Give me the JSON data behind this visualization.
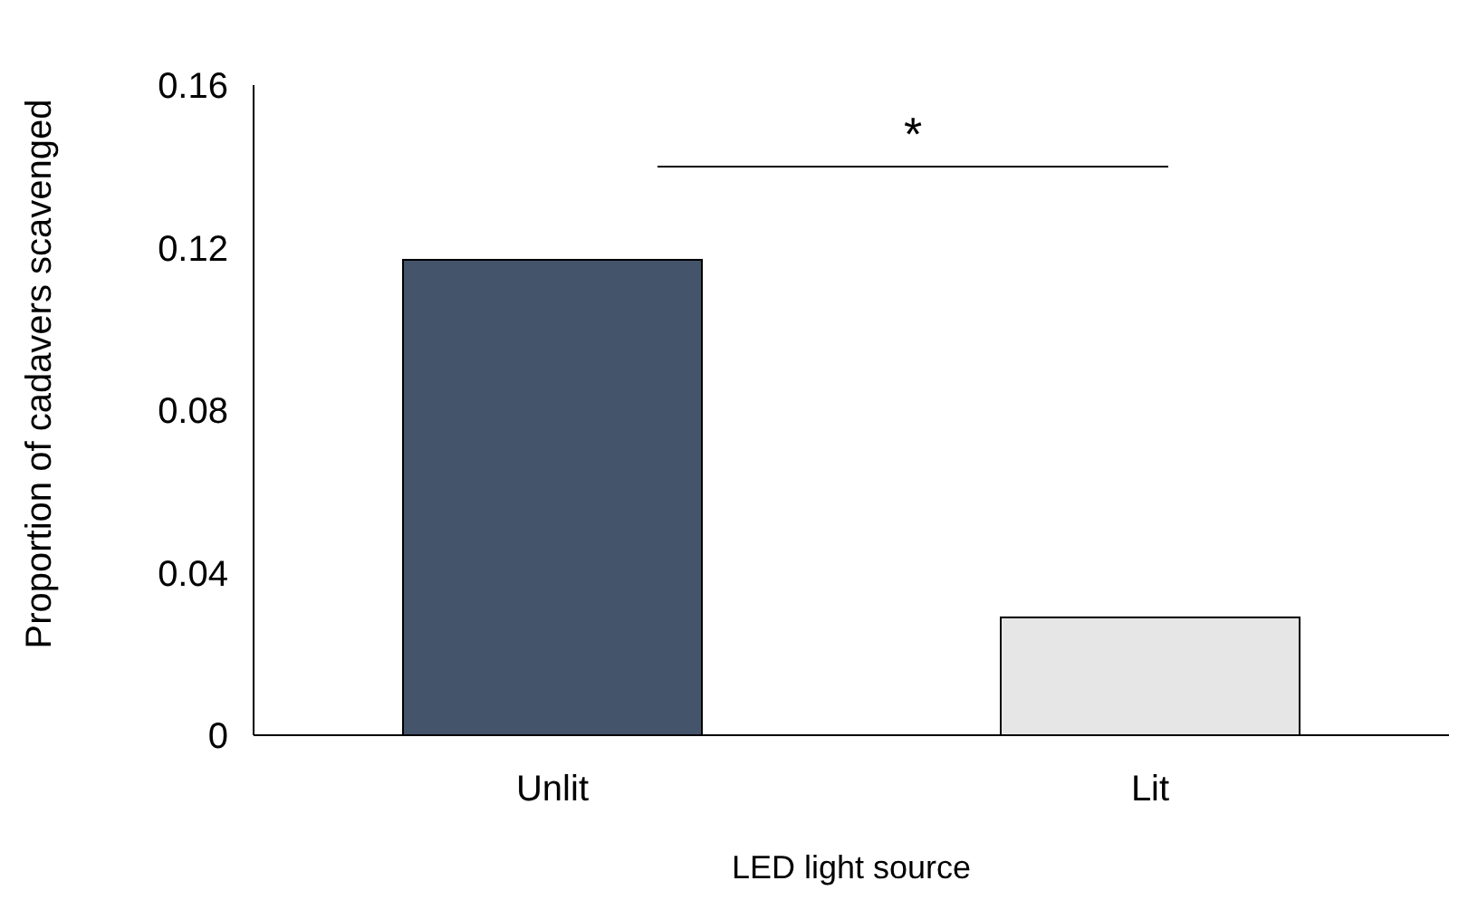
{
  "chart_data": {
    "type": "bar",
    "xlabel": "LED light source",
    "ylabel": "Proportion of cadavers scavenged",
    "categories": [
      "Unlit",
      "Lit"
    ],
    "values": [
      0.117,
      0.029
    ],
    "colors": [
      "#44546a",
      "#e7e6e6"
    ],
    "ylim": [
      0,
      0.16
    ],
    "yticks": [
      0,
      0.04,
      0.08,
      0.12,
      0.16
    ],
    "annotations": [
      "*"
    ]
  }
}
